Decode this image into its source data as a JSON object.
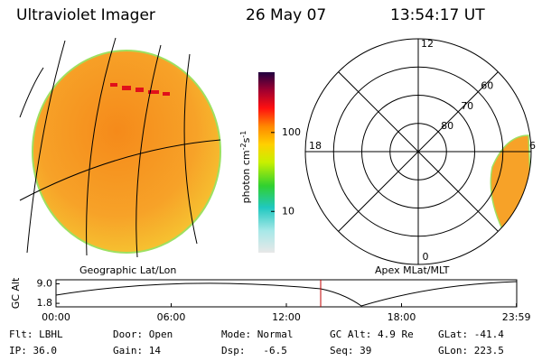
{
  "header": {
    "instrument": "Ultraviolet Imager",
    "date": "26 May 07",
    "time": "13:54:17 UT"
  },
  "colorbar": {
    "label": "photon cm",
    "exp1": "-2",
    "unit2": "s",
    "exp2": "-1",
    "log": true,
    "ylim": [
      3,
      580
    ],
    "yticks": [
      10,
      100
    ]
  },
  "left_panel": {
    "caption": "Geographic Lat/Lon"
  },
  "right_panel": {
    "caption": "Apex MLat/MLT",
    "mlt_labels": [
      12,
      18,
      6,
      0
    ],
    "lat_rings": [
      80,
      70,
      60
    ],
    "rlim": [
      90,
      50
    ]
  },
  "altitude_plot": {
    "y_label": "GC Alt",
    "yticks": [
      {
        "value": 9,
        "label": "9.0"
      },
      {
        "value": 1.8,
        "label": "1.8"
      }
    ],
    "ylim": [
      0.5,
      10.5
    ],
    "xlim": [
      0,
      24
    ],
    "xticks": [
      {
        "value": 0,
        "label": "00:00"
      },
      {
        "value": 6,
        "label": "06:00"
      },
      {
        "value": 12,
        "label": "12:00"
      },
      {
        "value": 18,
        "label": "18:00"
      },
      {
        "value": 23.983,
        "label": "23:59"
      }
    ]
  },
  "status": {
    "rows": [
      [
        "Flt: LBHL",
        "Door: Open",
        "Mode: Normal",
        "GC Alt: 4.9 Re",
        "GLat: -41.4"
      ],
      [
        "IP: 36.0",
        "Gain: 14",
        "Dsp:   -6.5",
        "Seq: 39",
        "GLon: 223.5"
      ]
    ]
  }
}
